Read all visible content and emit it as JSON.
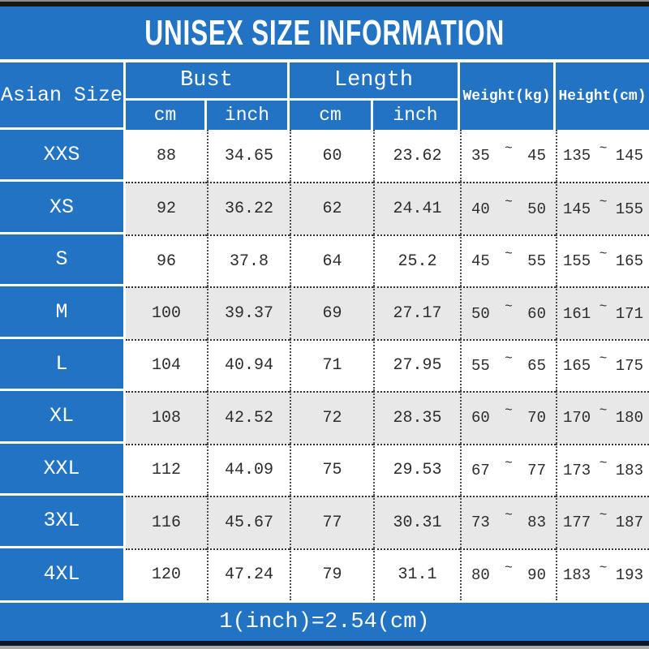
{
  "title": "UNISEX SIZE INFORMATION",
  "header": {
    "asian_size": "Asian Size",
    "bust": "Bust",
    "length": "Length",
    "weight": "Weight(kg)",
    "height": "Height(cm)",
    "cm": "cm",
    "inch": "inch",
    "tilde": "~"
  },
  "footer": {
    "note": "1(inch)=2.54(cm)"
  },
  "colors": {
    "banner_blue": "#2373c5",
    "alt_row_gray": "#e8e8e8",
    "dotted_line": "#333333",
    "data_text": "#2d2d2d",
    "header_text": "#ffffff"
  },
  "chart_data": {
    "type": "table",
    "title": "UNISEX SIZE INFORMATION",
    "columns": [
      "Asian Size",
      "Bust cm",
      "Bust inch",
      "Length cm",
      "Length inch",
      "Weight(kg)",
      "Height(cm)"
    ],
    "rows": [
      {
        "size": "XXS",
        "bust_cm": "88",
        "bust_inch": "34.65",
        "length_cm": "60",
        "length_inch": "23.62",
        "weight_min": "35",
        "weight_max": "45",
        "height_min": "135",
        "height_max": "145"
      },
      {
        "size": "XS",
        "bust_cm": "92",
        "bust_inch": "36.22",
        "length_cm": "62",
        "length_inch": "24.41",
        "weight_min": "40",
        "weight_max": "50",
        "height_min": "145",
        "height_max": "155"
      },
      {
        "size": "S",
        "bust_cm": "96",
        "bust_inch": "37.8",
        "length_cm": "64",
        "length_inch": "25.2",
        "weight_min": "45",
        "weight_max": "55",
        "height_min": "155",
        "height_max": "165"
      },
      {
        "size": "M",
        "bust_cm": "100",
        "bust_inch": "39.37",
        "length_cm": "69",
        "length_inch": "27.17",
        "weight_min": "50",
        "weight_max": "60",
        "height_min": "161",
        "height_max": "171"
      },
      {
        "size": "L",
        "bust_cm": "104",
        "bust_inch": "40.94",
        "length_cm": "71",
        "length_inch": "27.95",
        "weight_min": "55",
        "weight_max": "65",
        "height_min": "165",
        "height_max": "175"
      },
      {
        "size": "XL",
        "bust_cm": "108",
        "bust_inch": "42.52",
        "length_cm": "72",
        "length_inch": "28.35",
        "weight_min": "60",
        "weight_max": "70",
        "height_min": "170",
        "height_max": "180"
      },
      {
        "size": "XXL",
        "bust_cm": "112",
        "bust_inch": "44.09",
        "length_cm": "75",
        "length_inch": "29.53",
        "weight_min": "67",
        "weight_max": "77",
        "height_min": "173",
        "height_max": "183"
      },
      {
        "size": "3XL",
        "bust_cm": "116",
        "bust_inch": "45.67",
        "length_cm": "77",
        "length_inch": "30.31",
        "weight_min": "73",
        "weight_max": "83",
        "height_min": "177",
        "height_max": "187"
      },
      {
        "size": "4XL",
        "bust_cm": "120",
        "bust_inch": "47.24",
        "length_cm": "79",
        "length_inch": "31.1",
        "weight_min": "80",
        "weight_max": "90",
        "height_min": "183",
        "height_max": "193"
      }
    ],
    "note": "1(inch)=2.54(cm)"
  }
}
